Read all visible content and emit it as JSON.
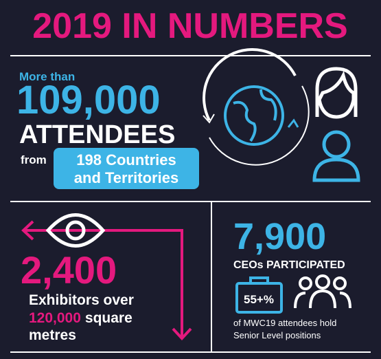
{
  "header": {
    "title": "2019 IN NUMBERS"
  },
  "attendees": {
    "prefix": "More than",
    "number": "109,000",
    "label": "ATTENDEES",
    "from": "from",
    "countries": [
      "198 Countries",
      "and Territories"
    ]
  },
  "exhibitors": {
    "number": "2,400",
    "line1": "Exhibitors over",
    "area": "120,000",
    "area_unit": "square",
    "line3": "metres"
  },
  "ceos": {
    "number": "7,900",
    "label": "CEOs PARTICIPATED",
    "badge": "55+%",
    "note": [
      "of MWC19 attendees hold",
      "Senior Level positions"
    ]
  }
}
